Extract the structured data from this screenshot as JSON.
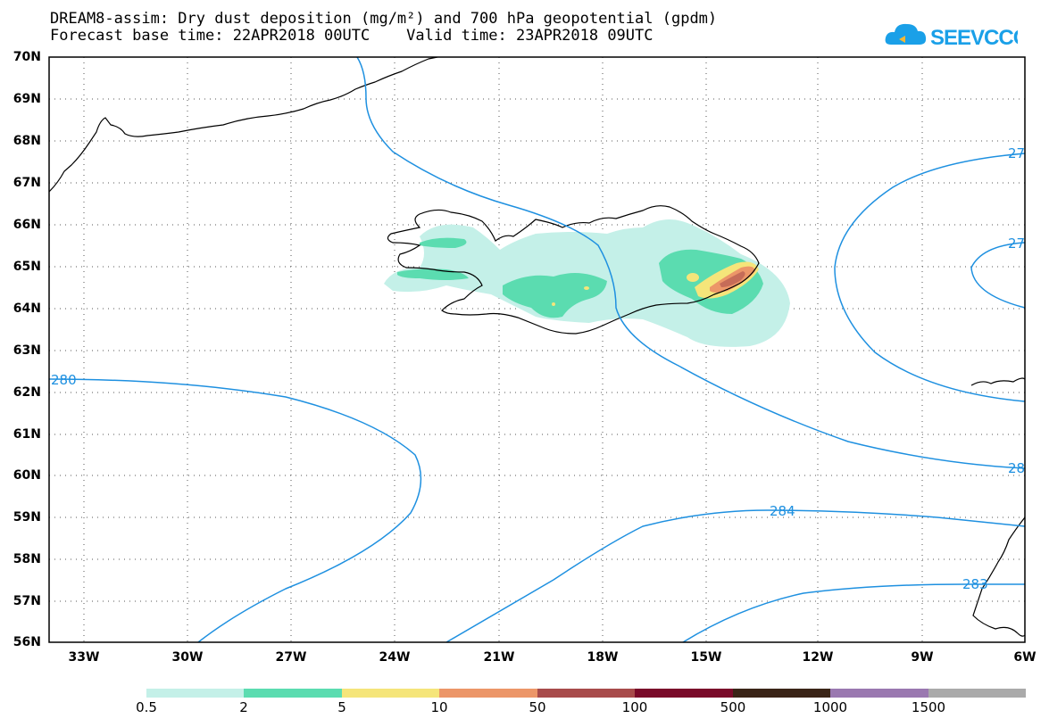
{
  "title": {
    "line1": "DREAM8-assim: Dry dust deposition (mg/m²) and 700 hPa geopotential (gpdm)",
    "line2": "Forecast base time: 22APR2018 00UTC    Valid time: 23APR2018 09UTC"
  },
  "logo": {
    "text": "SEEVCCC",
    "icon": "cloud-logo-icon",
    "color": "#1aa0e8"
  },
  "map": {
    "lat_labels": [
      "70N",
      "69N",
      "68N",
      "67N",
      "66N",
      "65N",
      "64N",
      "63N",
      "62N",
      "61N",
      "60N",
      "59N",
      "58N",
      "57N",
      "56N"
    ],
    "lon_labels": [
      "33W",
      "30W",
      "27W",
      "24W",
      "21W",
      "18W",
      "15W",
      "12W",
      "9W",
      "6W"
    ],
    "lat_range": [
      56,
      70
    ],
    "lon_range": [
      -34.3,
      -6
    ],
    "contour_color": "#1e90e0",
    "contour_labels": [
      "280",
      "284",
      "283",
      "28",
      "27",
      "27"
    ],
    "grid": "dotted"
  },
  "colorbar": {
    "labels": [
      "0.5",
      "2",
      "5",
      "10",
      "50",
      "100",
      "500",
      "1000",
      "1500"
    ],
    "colors": [
      "#c4f0e8",
      "#5bdcb0",
      "#f5e57a",
      "#ec9668",
      "#a84b4b",
      "#7a0a2a",
      "#3a2417",
      "#9a78b0",
      "#aaaaaa"
    ]
  }
}
